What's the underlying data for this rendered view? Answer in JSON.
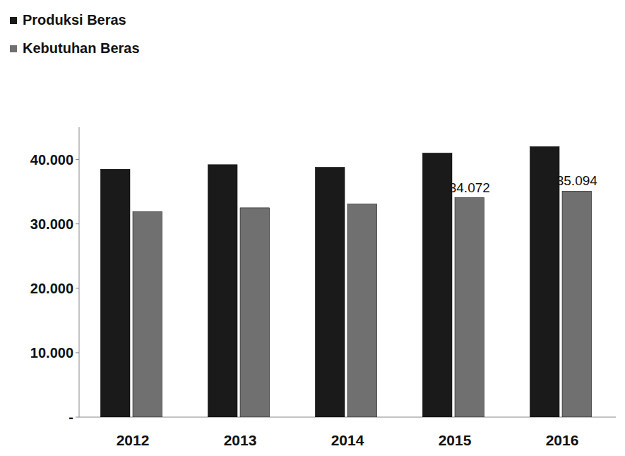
{
  "chart_data": {
    "type": "bar",
    "categories": [
      "2012",
      "2013",
      "2014",
      "2015",
      "2016"
    ],
    "series": [
      {
        "name": "Produksi Beras",
        "color": "#1a1a1a",
        "values": [
          38500,
          39200,
          38800,
          41000,
          42000
        ]
      },
      {
        "name": "Kebutuhan Beras",
        "color": "#707070",
        "values": [
          31900,
          32500,
          33100,
          34072,
          35094
        ],
        "value_labels": [
          null,
          null,
          null,
          "34.072",
          "35.094"
        ]
      }
    ],
    "ylim": [
      0,
      45000
    ],
    "yticks": [
      {
        "value": 0,
        "label": "-"
      },
      {
        "value": 10000,
        "label": "10.000"
      },
      {
        "value": 20000,
        "label": "20.000"
      },
      {
        "value": 30000,
        "label": "30.000"
      },
      {
        "value": 40000,
        "label": "40.000"
      }
    ],
    "grid": false,
    "legend": "top-left"
  }
}
